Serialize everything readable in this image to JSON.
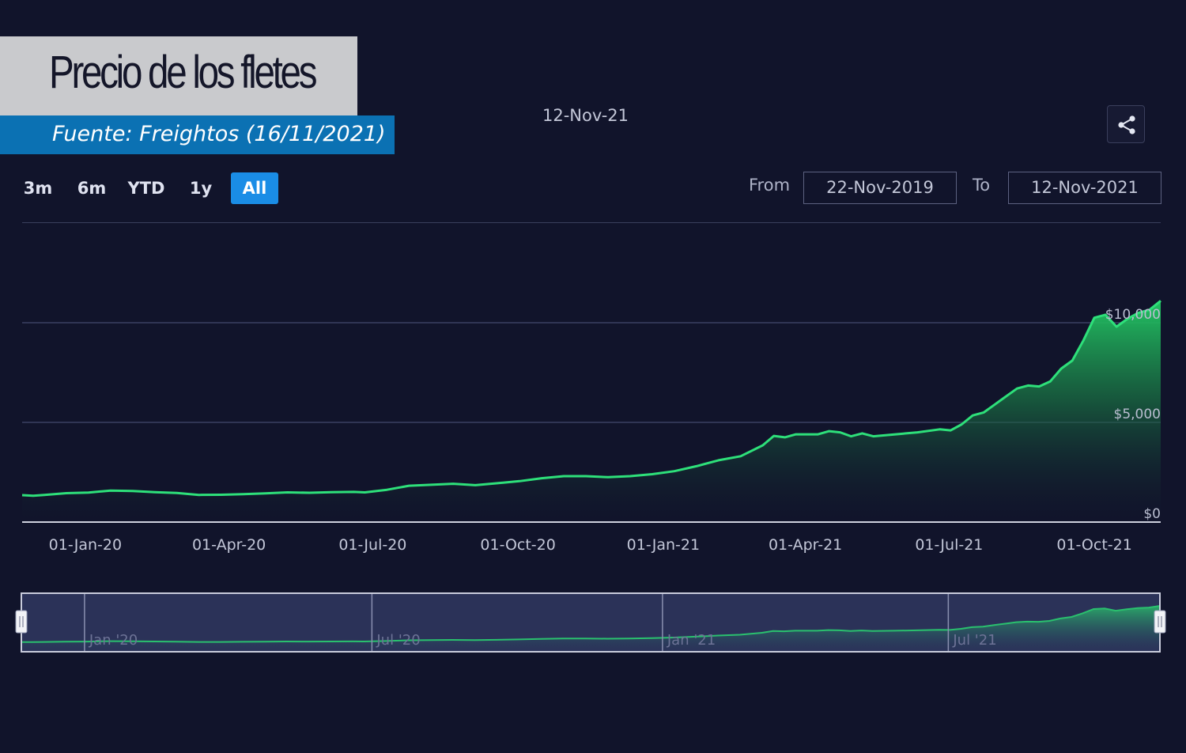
{
  "header": {
    "title": "Precio de los fletes",
    "source": "Fuente: Freightos (16/11/2021)",
    "date_label": "12-Nov-21"
  },
  "toolbar": {
    "ranges": [
      "3m",
      "6m",
      "YTD",
      "1y",
      "All"
    ],
    "active_range": "All",
    "from_label": "From",
    "from_value": "22-Nov-2019",
    "to_label": "To",
    "to_value": "12-Nov-2021",
    "share_icon": "share-icon"
  },
  "colors": {
    "background": "#11142b",
    "line": "#2ee07a",
    "area": "#1fb55f",
    "active_button": "#1a8de6"
  },
  "chart_data": {
    "type": "area",
    "x_start": "2019-11-22",
    "x_end": "2021-11-12",
    "xticks": [
      {
        "date": "2020-01-01",
        "label": "01-Jan-20"
      },
      {
        "date": "2020-04-01",
        "label": "01-Apr-20"
      },
      {
        "date": "2020-07-01",
        "label": "01-Jul-20"
      },
      {
        "date": "2020-10-01",
        "label": "01-Oct-20"
      },
      {
        "date": "2021-01-01",
        "label": "01-Jan-21"
      },
      {
        "date": "2021-04-01",
        "label": "01-Apr-21"
      },
      {
        "date": "2021-07-01",
        "label": "01-Jul-21"
      },
      {
        "date": "2021-10-01",
        "label": "01-Oct-21"
      }
    ],
    "yticks": [
      {
        "value": 0,
        "label": "$0"
      },
      {
        "value": 5000,
        "label": "$5,000"
      },
      {
        "value": 10000,
        "label": "$10,000"
      }
    ],
    "ylim": [
      0,
      15000
    ],
    "grid": true,
    "navigator_labels": [
      {
        "date": "2020-01-01",
        "label": "Jan '20"
      },
      {
        "date": "2020-07-01",
        "label": "Jul '20"
      },
      {
        "date": "2021-01-01",
        "label": "Jan '21"
      },
      {
        "date": "2021-07-01",
        "label": "Jul '21"
      }
    ],
    "series": [
      {
        "values": [
          [
            "2019-11-22",
            1350
          ],
          [
            "2019-11-29",
            1320
          ],
          [
            "2019-12-06",
            1360
          ],
          [
            "2019-12-20",
            1450
          ],
          [
            "2020-01-03",
            1480
          ],
          [
            "2020-01-17",
            1580
          ],
          [
            "2020-01-31",
            1560
          ],
          [
            "2020-02-14",
            1500
          ],
          [
            "2020-02-28",
            1460
          ],
          [
            "2020-03-13",
            1360
          ],
          [
            "2020-03-27",
            1370
          ],
          [
            "2020-04-10",
            1400
          ],
          [
            "2020-04-24",
            1440
          ],
          [
            "2020-05-08",
            1490
          ],
          [
            "2020-05-22",
            1470
          ],
          [
            "2020-06-05",
            1500
          ],
          [
            "2020-06-19",
            1510
          ],
          [
            "2020-06-26",
            1490
          ],
          [
            "2020-07-10",
            1620
          ],
          [
            "2020-07-24",
            1820
          ],
          [
            "2020-08-07",
            1870
          ],
          [
            "2020-08-21",
            1920
          ],
          [
            "2020-09-04",
            1850
          ],
          [
            "2020-09-18",
            1950
          ],
          [
            "2020-10-02",
            2050
          ],
          [
            "2020-10-16",
            2200
          ],
          [
            "2020-10-30",
            2300
          ],
          [
            "2020-11-13",
            2300
          ],
          [
            "2020-11-27",
            2250
          ],
          [
            "2020-12-11",
            2300
          ],
          [
            "2020-12-25",
            2400
          ],
          [
            "2021-01-08",
            2550
          ],
          [
            "2021-01-22",
            2800
          ],
          [
            "2021-02-05",
            3100
          ],
          [
            "2021-02-19",
            3300
          ],
          [
            "2021-03-05",
            3850
          ],
          [
            "2021-03-12",
            4320
          ],
          [
            "2021-03-19",
            4250
          ],
          [
            "2021-03-26",
            4400
          ],
          [
            "2021-04-09",
            4400
          ],
          [
            "2021-04-16",
            4560
          ],
          [
            "2021-04-23",
            4500
          ],
          [
            "2021-04-30",
            4300
          ],
          [
            "2021-05-07",
            4450
          ],
          [
            "2021-05-14",
            4300
          ],
          [
            "2021-05-28",
            4400
          ],
          [
            "2021-06-11",
            4500
          ],
          [
            "2021-06-25",
            4650
          ],
          [
            "2021-07-02",
            4600
          ],
          [
            "2021-07-09",
            4900
          ],
          [
            "2021-07-16",
            5350
          ],
          [
            "2021-07-23",
            5500
          ],
          [
            "2021-07-30",
            5900
          ],
          [
            "2021-08-06",
            6300
          ],
          [
            "2021-08-13",
            6700
          ],
          [
            "2021-08-20",
            6850
          ],
          [
            "2021-08-27",
            6800
          ],
          [
            "2021-09-03",
            7050
          ],
          [
            "2021-09-10",
            7700
          ],
          [
            "2021-09-17",
            8100
          ],
          [
            "2021-09-24",
            9100
          ],
          [
            "2021-10-01",
            10250
          ],
          [
            "2021-10-08",
            10400
          ],
          [
            "2021-10-15",
            9800
          ],
          [
            "2021-10-22",
            10200
          ],
          [
            "2021-10-29",
            10500
          ],
          [
            "2021-11-05",
            10650
          ],
          [
            "2021-11-12",
            11100
          ]
        ]
      }
    ]
  }
}
